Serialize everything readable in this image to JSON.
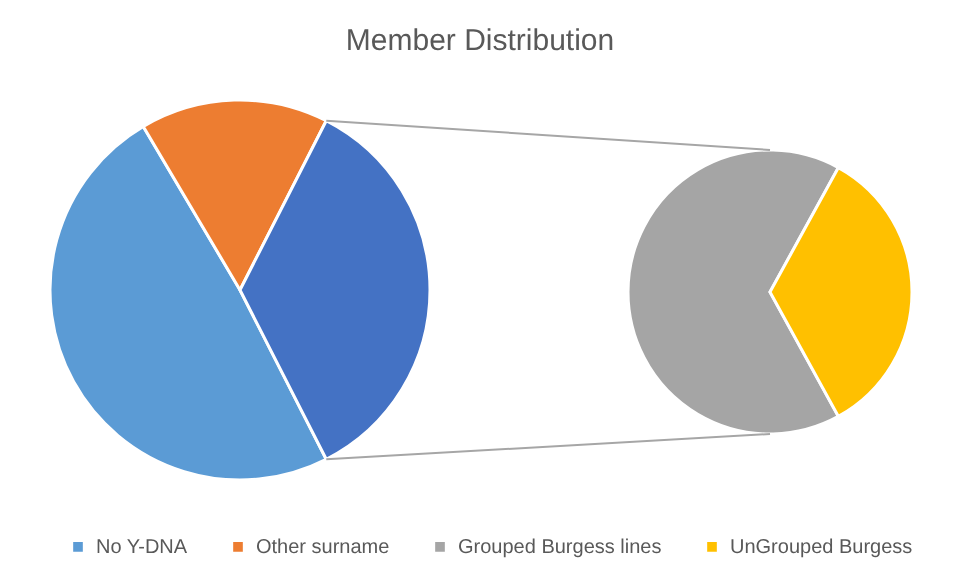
{
  "chart_data": [
    {
      "type": "pie",
      "title": "Member Distribution",
      "categories": [
        "No Y-DNA",
        "Other surname",
        null
      ],
      "values": [
        49,
        16,
        35
      ],
      "colors": [
        "#5b9bd5",
        "#ed7d31",
        "#4472c4"
      ],
      "legend": "bottom"
    },
    {
      "type": "pie",
      "categories": [
        "Grouped Burgess lines",
        "UnGrouped Burgess"
      ],
      "values": [
        66,
        34
      ],
      "colors": [
        "#a5a5a5",
        "#ffc000"
      ],
      "legend": "bottom"
    }
  ]
}
